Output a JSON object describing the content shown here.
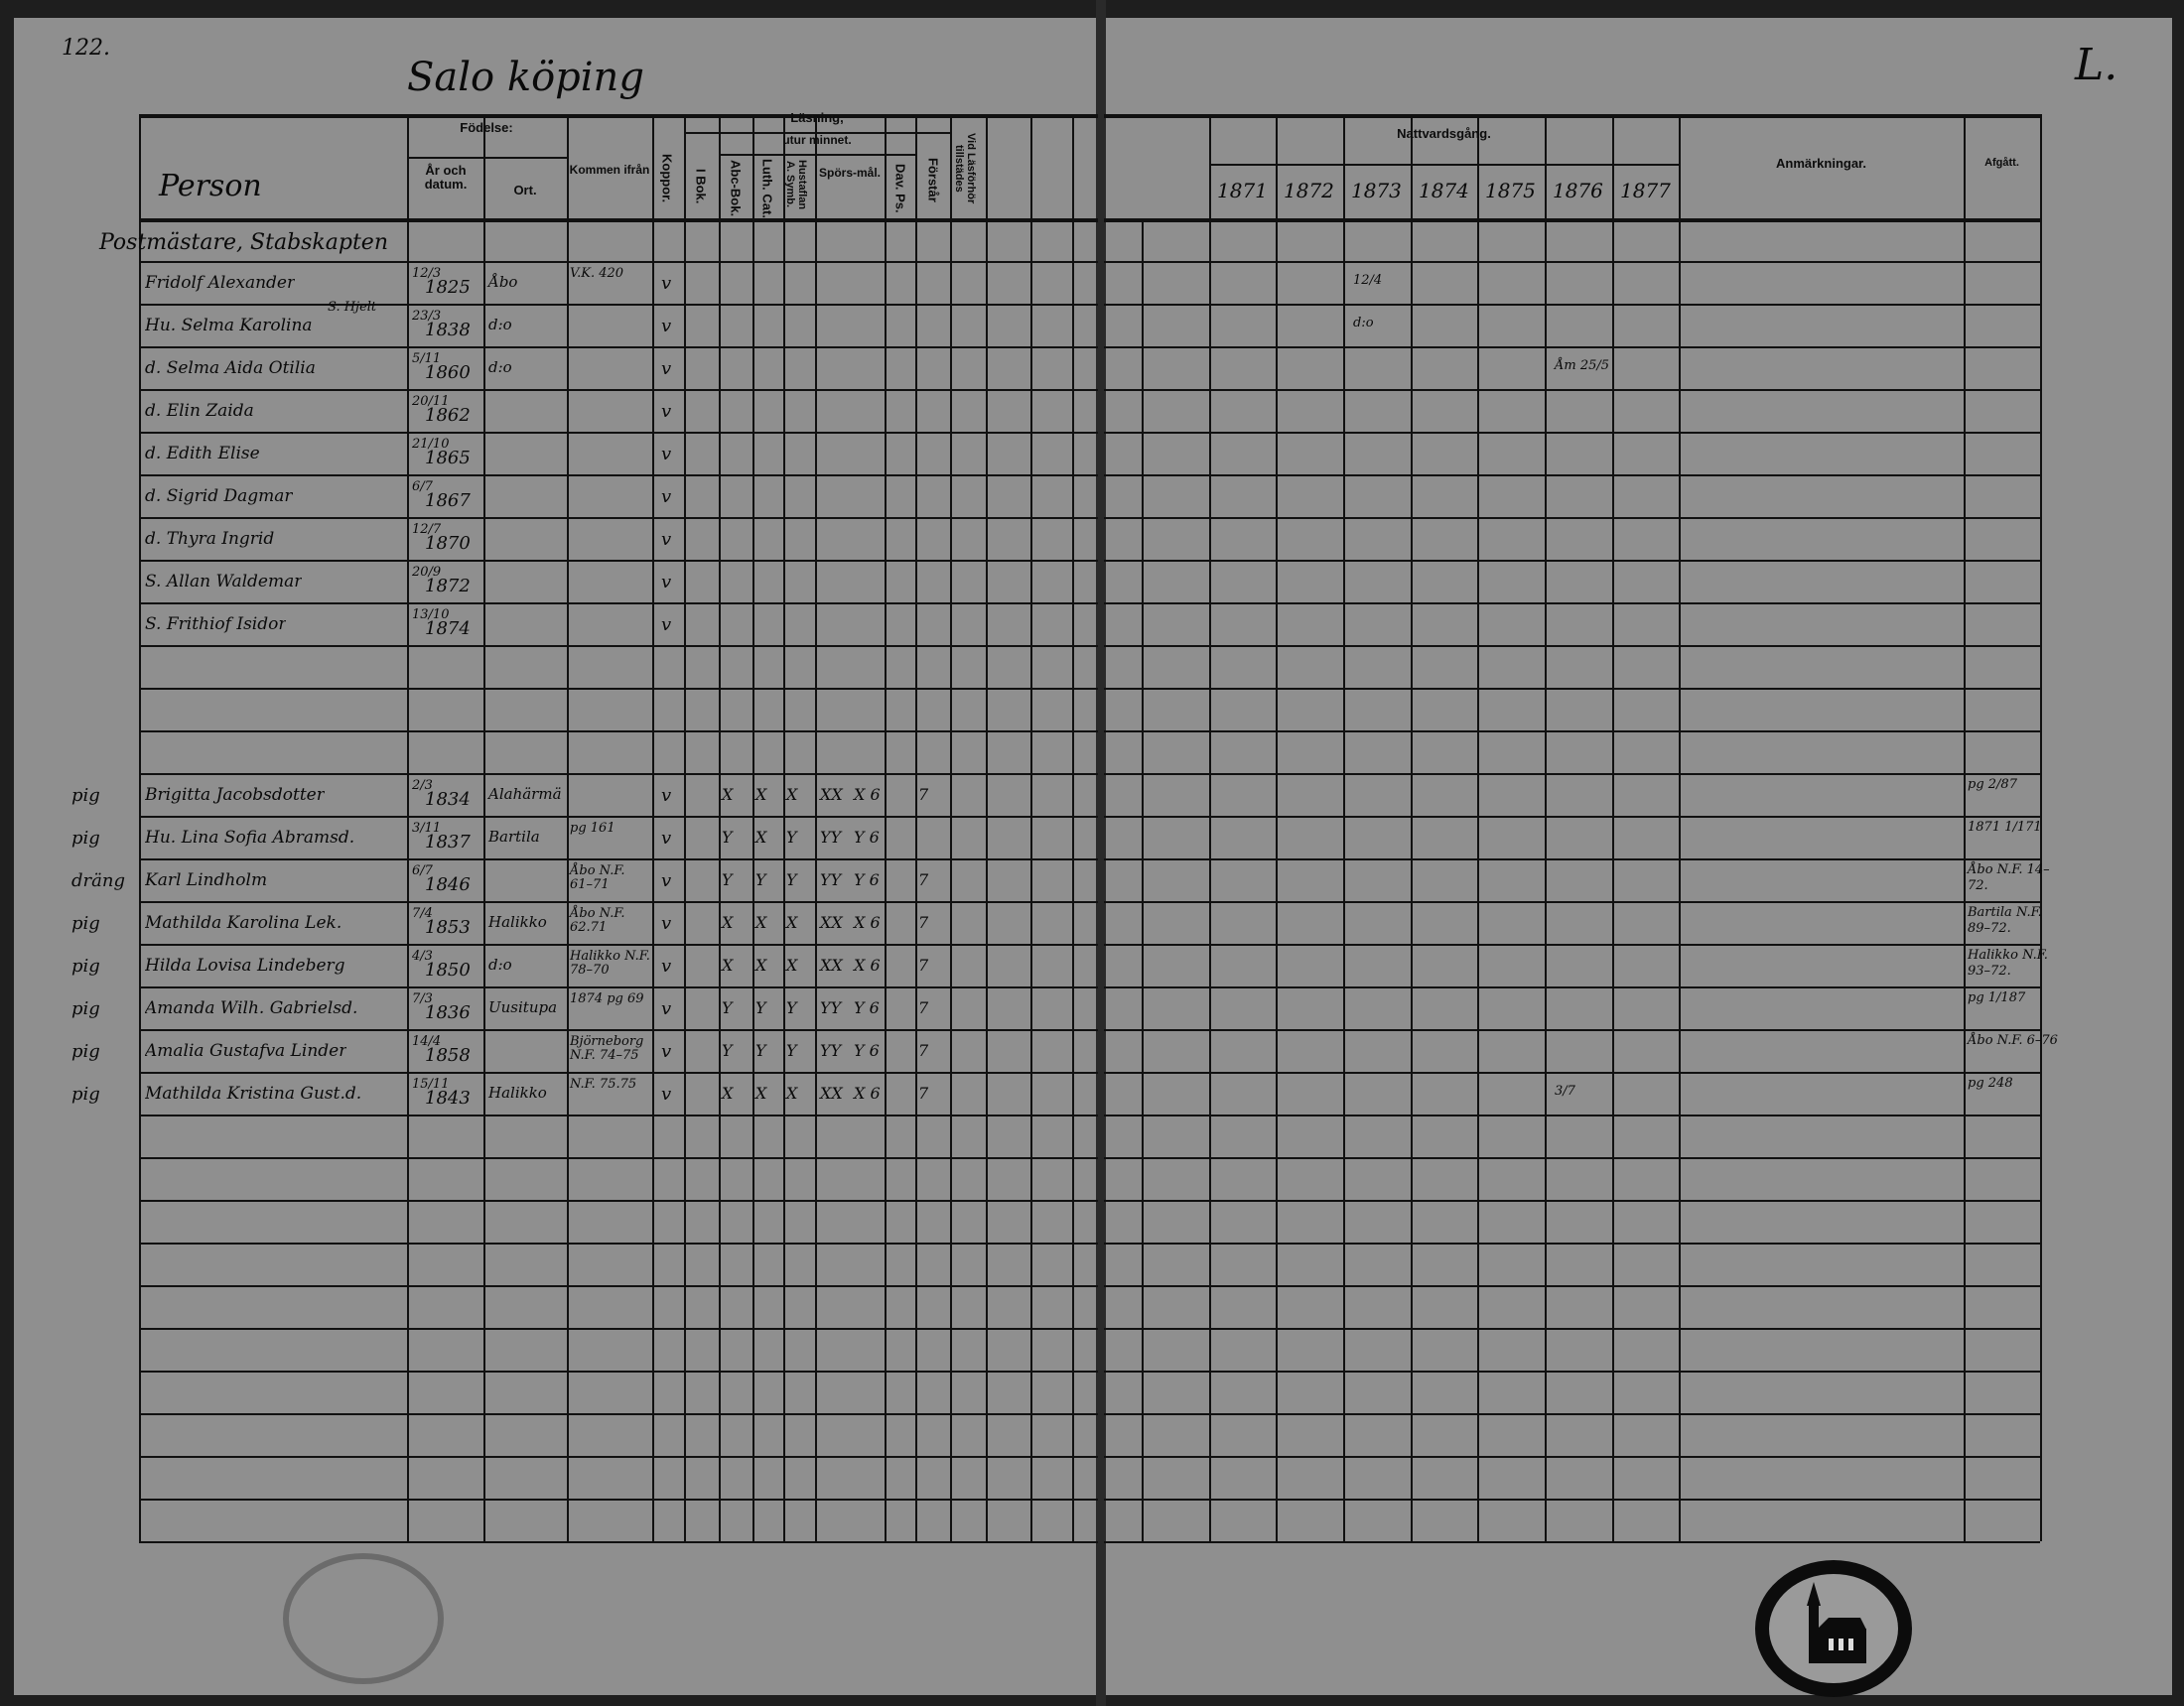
{
  "document": {
    "page_number_left": "122.",
    "page_mark_right": "L.",
    "place_title": "Salo köping"
  },
  "left_header": {
    "person": "Person",
    "fodelse": "Födelse:",
    "ar_datum": "År och datum.",
    "ort": "Ort.",
    "kommen_ifran": "Kommen ifrån",
    "koppor": "Koppor.",
    "lasning": "Läsning,",
    "utur_minnet": "utur minnet.",
    "i_bok": "I Bok.",
    "abc_bok": "Abc-Bok.",
    "luth_cat": "Luth. Cat.",
    "hustaflan": "Hustaflan A. Symb.",
    "sporsmal": "Spörs-mål.",
    "dav_ps": "Dav. Ps.",
    "forstar": "Förstår",
    "vid_lasforhor": "Vid Läsförhör tillstädes"
  },
  "right_header": {
    "nattvardsgang": "Nattvardsgång.",
    "years": [
      "1871",
      "1872",
      "1873",
      "1874",
      "1875",
      "1876",
      "1877"
    ],
    "anmarkningar": "Anmärkningar.",
    "afgatt": "Afgått."
  },
  "household_heading": "Postmästare, Stabskapten",
  "rows": [
    {
      "row": 1,
      "margin": "",
      "name": "Fridolf Alexander",
      "day_month": "12/3",
      "year": "1825",
      "ort": "Åbo",
      "kommen": "V.K. 420",
      "koppor": "v",
      "marks": [],
      "natt": {
        "1873": "12/4"
      },
      "afgatt": ""
    },
    {
      "row": 2,
      "margin": "",
      "name": "Hu. Selma Karolina",
      "name_note": "S. Hjelt",
      "day_month": "23/3",
      "year": "1838",
      "ort": "d:o",
      "kommen": "",
      "koppor": "v",
      "marks": [],
      "natt": {
        "1873": "d:o"
      },
      "afgatt": ""
    },
    {
      "row": 3,
      "margin": "",
      "name": "d. Selma Aida Otilia",
      "day_month": "5/11",
      "year": "1860",
      "ort": "d:o",
      "kommen": "",
      "koppor": "v",
      "marks": [],
      "natt": {
        "1876": "Åm 25/5"
      },
      "afgatt": ""
    },
    {
      "row": 4,
      "margin": "",
      "name": "d. Elin Zaida",
      "day_month": "20/11",
      "year": "1862",
      "ort": "",
      "kommen": "",
      "koppor": "v",
      "marks": [],
      "natt": {},
      "afgatt": ""
    },
    {
      "row": 5,
      "margin": "",
      "name": "d. Edith Elise",
      "day_month": "21/10",
      "year": "1865",
      "ort": "",
      "kommen": "",
      "koppor": "v",
      "marks": [],
      "natt": {},
      "afgatt": ""
    },
    {
      "row": 6,
      "margin": "",
      "name": "d. Sigrid Dagmar",
      "day_month": "6/7",
      "year": "1867",
      "ort": "",
      "kommen": "",
      "koppor": "v",
      "marks": [],
      "natt": {},
      "afgatt": ""
    },
    {
      "row": 7,
      "margin": "",
      "name": "d. Thyra Ingrid",
      "day_month": "12/7",
      "year": "1870",
      "ort": "",
      "kommen": "",
      "koppor": "v",
      "marks": [],
      "natt": {},
      "afgatt": ""
    },
    {
      "row": 8,
      "margin": "",
      "name": "S. Allan Waldemar",
      "day_month": "20/9",
      "year": "1872",
      "ort": "",
      "kommen": "",
      "koppor": "v",
      "marks": [],
      "natt": {},
      "afgatt": ""
    },
    {
      "row": 9,
      "margin": "",
      "name": "S. Frithiof Isidor",
      "day_month": "13/10",
      "year": "1874",
      "ort": "",
      "kommen": "",
      "koppor": "v",
      "marks": [],
      "natt": {},
      "afgatt": ""
    },
    {
      "row": 13,
      "margin": "pig",
      "name": "Brigitta Jacobsdotter",
      "day_month": "2/3",
      "year": "1834",
      "ort": "Alahärmä",
      "kommen": "",
      "koppor": "v",
      "marks": [
        "X",
        "X",
        "X",
        "XX",
        "X 6",
        "7"
      ],
      "natt": {},
      "afgatt": "pg 2/87"
    },
    {
      "row": 14,
      "margin": "pig",
      "name": "Hu. Lina Sofia Abramsd.",
      "day_month": "3/11",
      "year": "1837",
      "ort": "Bartila",
      "kommen": "pg 161",
      "koppor": "v",
      "marks": [
        "Y",
        "X",
        "Y",
        "YY",
        "Y 6",
        ""
      ],
      "natt": {},
      "afgatt": "1871 1/171"
    },
    {
      "row": 15,
      "margin": "dräng",
      "name": "Karl Lindholm",
      "day_month": "6/7",
      "year": "1846",
      "ort": "",
      "kommen": "Åbo N.F. 61–71",
      "koppor": "v",
      "marks": [
        "Y",
        "Y",
        "Y",
        "YY",
        "Y 6",
        "7"
      ],
      "natt": {},
      "afgatt": "Åbo N.F. 14–72."
    },
    {
      "row": 16,
      "margin": "pig",
      "name": "Mathilda Karolina Lek.",
      "day_month": "7/4",
      "year": "1853",
      "ort": "Halikko",
      "kommen": "Åbo N.F. 62.71",
      "koppor": "v",
      "marks": [
        "X",
        "X",
        "X",
        "XX",
        "X 6",
        "7"
      ],
      "natt": {},
      "afgatt": "Bartila N.F. 89–72."
    },
    {
      "row": 17,
      "margin": "pig",
      "name": "Hilda Lovisa Lindeberg",
      "day_month": "4/3",
      "year": "1850",
      "ort": "d:o",
      "kommen": "Halikko N.F. 78–70",
      "koppor": "v",
      "marks": [
        "X",
        "X",
        "X",
        "XX",
        "X 6",
        "7"
      ],
      "natt": {},
      "afgatt": "Halikko N.F. 93–72."
    },
    {
      "row": 18,
      "margin": "pig",
      "name": "Amanda Wilh. Gabrielsd.",
      "day_month": "7/3",
      "year": "1836",
      "ort": "Uusitupa",
      "kommen": "1874 pg 69",
      "koppor": "v",
      "marks": [
        "Y",
        "Y",
        "Y",
        "YY",
        "Y 6",
        "7"
      ],
      "natt": {},
      "afgatt": "pg 1/187"
    },
    {
      "row": 19,
      "margin": "pig",
      "name": "Amalia Gustafva Linder",
      "day_month": "14/4",
      "year": "1858",
      "ort": "",
      "kommen": "Björneborg N.F. 74–75",
      "koppor": "v",
      "marks": [
        "Y",
        "Y",
        "Y",
        "YY",
        "Y 6",
        "7"
      ],
      "natt": {},
      "afgatt": "Åbo N.F. 6–76"
    },
    {
      "row": 20,
      "margin": "pig",
      "name": "Mathilda Kristina Gust.d.",
      "day_month": "15/11",
      "year": "1843",
      "ort": "Halikko",
      "kommen": "N.F. 75.75",
      "koppor": "v",
      "marks": [
        "X",
        "X",
        "X",
        "XX",
        "X 6",
        "7"
      ],
      "natt": {
        "1876": "3/7"
      },
      "afgatt": "pg 248"
    }
  ],
  "colors": {
    "paper": "#8f8f8f",
    "ink": "#0a0a0a",
    "border": "#1e1e1e"
  }
}
